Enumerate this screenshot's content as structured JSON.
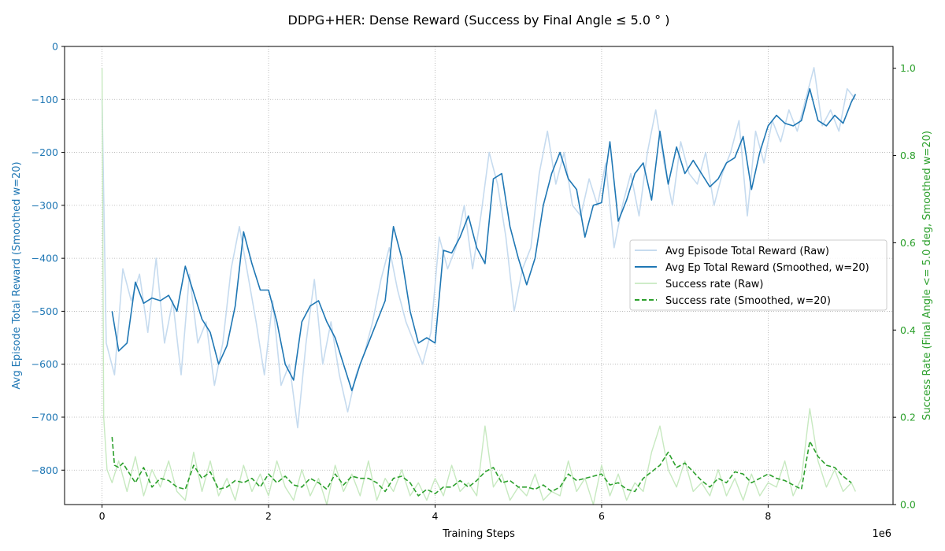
{
  "chart_data": {
    "type": "line",
    "title": "DDPG+HER: Dense Reward (Success by Final Angle $\\leq$ 5.0$^\\circ$)",
    "title_display": "DDPG+HER: Dense Reward (Success by Final Angle  ≤  5.0 ° )",
    "xlabel": "Training Steps",
    "x_offset_label": "1e6",
    "ylabel_left": "Avg Episode Total Reward (Smoothed w=20)",
    "ylabel_right": "Success Rate (Final Angle <= 5.0 deg, Smoothed w=20)",
    "xlim": [
      -0.45,
      9.5
    ],
    "ylim_left": [
      -865,
      0
    ],
    "ylim_right": [
      0,
      1.05
    ],
    "x_ticks": [
      0,
      2,
      4,
      6,
      8
    ],
    "y_ticks_left": [
      0,
      -100,
      -200,
      -300,
      -400,
      -500,
      -600,
      -700,
      -800
    ],
    "y_ticks_right": [
      0.0,
      0.2,
      0.4,
      0.6,
      0.8,
      1.0
    ],
    "grid": true,
    "legend_position": "center-right",
    "colors": {
      "reward": "#1f77b4",
      "reward_raw": "#c6dbef",
      "success": "#2ca02c",
      "success_raw": "#c7e9c0",
      "grid": "#b0b0b0"
    },
    "series": [
      {
        "name": "Avg Episode Total Reward (Raw)",
        "axis": "left",
        "style": "raw",
        "x": [
          0,
          0.05,
          0.15,
          0.25,
          0.35,
          0.45,
          0.55,
          0.65,
          0.75,
          0.85,
          0.95,
          1.05,
          1.15,
          1.25,
          1.35,
          1.45,
          1.55,
          1.65,
          1.75,
          1.85,
          1.95,
          2.05,
          2.15,
          2.25,
          2.35,
          2.45,
          2.55,
          2.65,
          2.75,
          2.85,
          2.95,
          3.05,
          3.15,
          3.25,
          3.35,
          3.45,
          3.55,
          3.65,
          3.75,
          3.85,
          3.95,
          4.05,
          4.15,
          4.25,
          4.35,
          4.45,
          4.55,
          4.65,
          4.75,
          4.85,
          4.95,
          5.05,
          5.15,
          5.25,
          5.35,
          5.45,
          5.55,
          5.65,
          5.75,
          5.85,
          5.95,
          6.05,
          6.15,
          6.25,
          6.35,
          6.45,
          6.55,
          6.65,
          6.75,
          6.85,
          6.95,
          7.05,
          7.15,
          7.25,
          7.35,
          7.45,
          7.55,
          7.65,
          7.75,
          7.85,
          7.95,
          8.05,
          8.15,
          8.25,
          8.35,
          8.45,
          8.55,
          8.65,
          8.75,
          8.85,
          8.95,
          9.05
        ],
        "values": [
          -100,
          -560,
          -620,
          -420,
          -480,
          -430,
          -540,
          -400,
          -560,
          -480,
          -620,
          -430,
          -560,
          -520,
          -640,
          -560,
          -420,
          -340,
          -430,
          -520,
          -620,
          -480,
          -640,
          -600,
          -720,
          -560,
          -440,
          -600,
          -520,
          -620,
          -690,
          -620,
          -580,
          -520,
          -440,
          -380,
          -460,
          -520,
          -560,
          -600,
          -540,
          -360,
          -420,
          -380,
          -300,
          -420,
          -320,
          -200,
          -260,
          -360,
          -500,
          -420,
          -380,
          -240,
          -160,
          -260,
          -200,
          -300,
          -320,
          -250,
          -300,
          -220,
          -380,
          -300,
          -240,
          -320,
          -200,
          -120,
          -220,
          -300,
          -180,
          -240,
          -260,
          -200,
          -300,
          -240,
          -200,
          -140,
          -320,
          -160,
          -220,
          -140,
          -180,
          -120,
          -160,
          -100,
          -40,
          -150,
          -120,
          -160,
          -80,
          -100
        ]
      },
      {
        "name": "Avg Ep Total Reward (Smoothed, w=20)",
        "axis": "left",
        "style": "solid",
        "x": [
          0.12,
          0.2,
          0.3,
          0.4,
          0.5,
          0.6,
          0.7,
          0.8,
          0.9,
          1.0,
          1.1,
          1.2,
          1.3,
          1.4,
          1.5,
          1.6,
          1.7,
          1.8,
          1.9,
          2.0,
          2.1,
          2.2,
          2.3,
          2.4,
          2.5,
          2.6,
          2.7,
          2.8,
          2.9,
          3.0,
          3.1,
          3.2,
          3.3,
          3.4,
          3.5,
          3.6,
          3.7,
          3.8,
          3.9,
          4.0,
          4.1,
          4.2,
          4.3,
          4.4,
          4.5,
          4.6,
          4.7,
          4.8,
          4.9,
          5.0,
          5.1,
          5.2,
          5.3,
          5.4,
          5.5,
          5.6,
          5.7,
          5.8,
          5.9,
          6.0,
          6.1,
          6.2,
          6.3,
          6.4,
          6.5,
          6.6,
          6.7,
          6.8,
          6.9,
          7.0,
          7.1,
          7.2,
          7.3,
          7.4,
          7.5,
          7.6,
          7.7,
          7.8,
          7.9,
          8.0,
          8.1,
          8.2,
          8.3,
          8.4,
          8.5,
          8.6,
          8.7,
          8.8,
          8.9,
          9.0,
          9.05
        ],
        "values": [
          -500,
          -575,
          -560,
          -445,
          -485,
          -475,
          -480,
          -470,
          -500,
          -415,
          -465,
          -515,
          -540,
          -600,
          -565,
          -490,
          -350,
          -410,
          -460,
          -460,
          -520,
          -600,
          -630,
          -520,
          -490,
          -480,
          -520,
          -550,
          -600,
          -650,
          -600,
          -560,
          -520,
          -480,
          -340,
          -400,
          -500,
          -560,
          -550,
          -560,
          -385,
          -390,
          -360,
          -320,
          -380,
          -410,
          -250,
          -240,
          -340,
          -400,
          -450,
          -400,
          -300,
          -240,
          -200,
          -250,
          -270,
          -360,
          -300,
          -295,
          -180,
          -330,
          -290,
          -240,
          -220,
          -290,
          -160,
          -260,
          -190,
          -240,
          -215,
          -240,
          -265,
          -250,
          -220,
          -210,
          -170,
          -270,
          -200,
          -150,
          -130,
          -145,
          -150,
          -140,
          -80,
          -140,
          -150,
          -130,
          -145,
          -105,
          -90
        ]
      },
      {
        "name": "Success rate (Raw)",
        "axis": "right",
        "style": "raw",
        "x": [
          0,
          0.02,
          0.06,
          0.12,
          0.2,
          0.3,
          0.4,
          0.5,
          0.6,
          0.7,
          0.8,
          0.9,
          1.0,
          1.1,
          1.2,
          1.3,
          1.4,
          1.5,
          1.6,
          1.7,
          1.8,
          1.9,
          2.0,
          2.1,
          2.2,
          2.3,
          2.4,
          2.5,
          2.6,
          2.7,
          2.8,
          2.9,
          3.0,
          3.1,
          3.2,
          3.3,
          3.4,
          3.5,
          3.6,
          3.7,
          3.8,
          3.9,
          4.0,
          4.1,
          4.2,
          4.3,
          4.4,
          4.5,
          4.6,
          4.7,
          4.8,
          4.9,
          5.0,
          5.1,
          5.2,
          5.3,
          5.4,
          5.5,
          5.6,
          5.7,
          5.8,
          5.9,
          6.0,
          6.1,
          6.2,
          6.3,
          6.4,
          6.5,
          6.6,
          6.7,
          6.8,
          6.9,
          7.0,
          7.1,
          7.2,
          7.3,
          7.4,
          7.5,
          7.6,
          7.7,
          7.8,
          7.9,
          8.0,
          8.1,
          8.2,
          8.3,
          8.4,
          8.5,
          8.6,
          8.7,
          8.8,
          8.9,
          9.0,
          9.05
        ],
        "values": [
          1.0,
          0.2,
          0.08,
          0.05,
          0.1,
          0.03,
          0.11,
          0.02,
          0.08,
          0.04,
          0.1,
          0.03,
          0.01,
          0.12,
          0.03,
          0.1,
          0.02,
          0.06,
          0.01,
          0.09,
          0.03,
          0.07,
          0.02,
          0.1,
          0.04,
          0.01,
          0.08,
          0.02,
          0.06,
          0.0,
          0.09,
          0.03,
          0.07,
          0.02,
          0.1,
          0.01,
          0.06,
          0.03,
          0.08,
          0.02,
          0.05,
          0.01,
          0.06,
          0.02,
          0.09,
          0.03,
          0.05,
          0.02,
          0.18,
          0.04,
          0.07,
          0.01,
          0.04,
          0.02,
          0.07,
          0.01,
          0.03,
          0.02,
          0.1,
          0.03,
          0.06,
          0.0,
          0.09,
          0.02,
          0.07,
          0.01,
          0.05,
          0.03,
          0.12,
          0.18,
          0.08,
          0.04,
          0.1,
          0.03,
          0.05,
          0.02,
          0.08,
          0.02,
          0.06,
          0.01,
          0.07,
          0.02,
          0.05,
          0.04,
          0.1,
          0.02,
          0.06,
          0.22,
          0.1,
          0.04,
          0.08,
          0.03,
          0.05,
          0.03
        ]
      },
      {
        "name": "Success rate (Smoothed, w=20)",
        "axis": "right",
        "style": "dashed",
        "x": [
          0.12,
          0.15,
          0.2,
          0.25,
          0.3,
          0.4,
          0.5,
          0.6,
          0.7,
          0.8,
          0.9,
          1.0,
          1.1,
          1.2,
          1.3,
          1.4,
          1.5,
          1.6,
          1.7,
          1.8,
          1.9,
          2.0,
          2.1,
          2.2,
          2.3,
          2.4,
          2.5,
          2.6,
          2.7,
          2.8,
          2.9,
          3.0,
          3.1,
          3.2,
          3.3,
          3.4,
          3.5,
          3.6,
          3.7,
          3.8,
          3.9,
          4.0,
          4.1,
          4.2,
          4.3,
          4.4,
          4.5,
          4.6,
          4.7,
          4.8,
          4.9,
          5.0,
          5.1,
          5.2,
          5.3,
          5.4,
          5.5,
          5.6,
          5.7,
          5.8,
          5.9,
          6.0,
          6.1,
          6.2,
          6.3,
          6.4,
          6.5,
          6.6,
          6.7,
          6.8,
          6.9,
          7.0,
          7.1,
          7.2,
          7.3,
          7.4,
          7.5,
          7.6,
          7.7,
          7.8,
          7.9,
          8.0,
          8.1,
          8.2,
          8.3,
          8.4,
          8.5,
          8.6,
          8.7,
          8.8,
          8.9,
          9.0
        ],
        "values": [
          0.155,
          0.09,
          0.085,
          0.095,
          0.08,
          0.05,
          0.085,
          0.04,
          0.06,
          0.055,
          0.04,
          0.035,
          0.09,
          0.06,
          0.075,
          0.035,
          0.04,
          0.055,
          0.05,
          0.06,
          0.04,
          0.07,
          0.05,
          0.065,
          0.045,
          0.04,
          0.06,
          0.05,
          0.035,
          0.07,
          0.045,
          0.065,
          0.06,
          0.06,
          0.05,
          0.03,
          0.06,
          0.065,
          0.05,
          0.02,
          0.035,
          0.025,
          0.04,
          0.04,
          0.055,
          0.04,
          0.055,
          0.075,
          0.085,
          0.05,
          0.055,
          0.04,
          0.04,
          0.035,
          0.045,
          0.03,
          0.04,
          0.07,
          0.055,
          0.06,
          0.065,
          0.07,
          0.045,
          0.05,
          0.035,
          0.03,
          0.06,
          0.075,
          0.09,
          0.12,
          0.085,
          0.095,
          0.075,
          0.055,
          0.04,
          0.06,
          0.05,
          0.075,
          0.07,
          0.05,
          0.06,
          0.07,
          0.06,
          0.055,
          0.045,
          0.035,
          0.145,
          0.11,
          0.09,
          0.085,
          0.065,
          0.05
        ]
      }
    ]
  }
}
